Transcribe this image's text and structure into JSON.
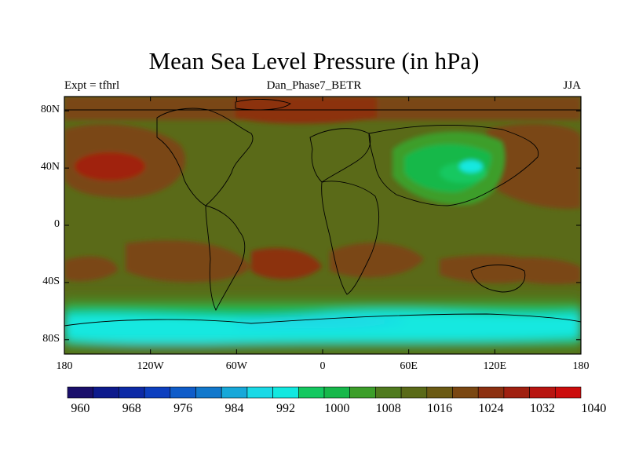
{
  "title": "Mean Sea Level Pressure (in hPa)",
  "subtitle_left": "Expt = tfhrl",
  "subtitle_center": "Dan_Phase7_BETR",
  "subtitle_right": "JJA",
  "y_ticks": [
    {
      "label": "80N",
      "lat": 80
    },
    {
      "label": "40N",
      "lat": 40
    },
    {
      "label": "0",
      "lat": 0
    },
    {
      "label": "40S",
      "lat": -40
    },
    {
      "label": "80S",
      "lat": -80
    }
  ],
  "x_ticks": [
    {
      "label": "180",
      "lon": -180
    },
    {
      "label": "120W",
      "lon": -120
    },
    {
      "label": "60W",
      "lon": -60
    },
    {
      "label": "0",
      "lon": 0
    },
    {
      "label": "60E",
      "lon": 60
    },
    {
      "label": "120E",
      "lon": 120
    },
    {
      "label": "180",
      "lon": 180
    }
  ],
  "colorbar": {
    "colors": [
      "#1a0f6b",
      "#0d1a8c",
      "#0d2aa6",
      "#0d3fbf",
      "#0f5cc9",
      "#1278cc",
      "#17a8d9",
      "#1ad9e6",
      "#12e8e0",
      "#14c860",
      "#16b84a",
      "#3c9e2a",
      "#4f7a1e",
      "#5a6a18",
      "#6b5a14",
      "#7a4712",
      "#8c3010",
      "#a02010",
      "#b81510",
      "#cc0d0d"
    ],
    "labels": [
      "960",
      "968",
      "976",
      "984",
      "992",
      "1000",
      "1008",
      "1016",
      "1024",
      "1032",
      "1040"
    ]
  },
  "map_data": {
    "region": "global",
    "lon_range": [
      -180,
      180
    ],
    "lat_range": [
      -90,
      90
    ],
    "variable": "Mean Sea Level Pressure",
    "units": "hPa",
    "season": "JJA"
  }
}
